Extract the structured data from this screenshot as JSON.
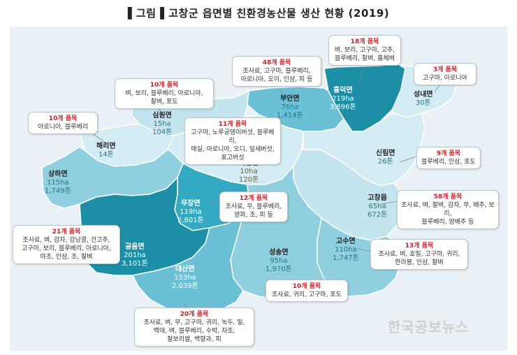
{
  "title": "▌그림▐  고창군 읍면별 친환경농산물 생산 현황 (2019)",
  "watermark": "한국공보뉴스",
  "colors": {
    "water": "#e9f0f6",
    "light": "#d4ecf4",
    "light2": "#c4e4ef",
    "mid": "#8fcfe0",
    "mid2": "#6cc0d6",
    "dark": "#34a9c2",
    "darkest": "#1c8ea6",
    "boundary": "#ffffff",
    "count_text": "#c0242a"
  },
  "regions": [
    {
      "name": "흥덕면",
      "area": "219ha",
      "output": "3,896톤"
    },
    {
      "name": "성내면",
      "area": "30톤",
      "output": ""
    },
    {
      "name": "부안면",
      "area": "76ha",
      "output": "1,414톤"
    },
    {
      "name": "심원면",
      "area": "15ha",
      "output": "104톤"
    },
    {
      "name": "해리면",
      "area": "14톤",
      "output": ""
    },
    {
      "name": "아산면",
      "area": "10ha",
      "output": "120톤"
    },
    {
      "name": "신림면",
      "area": "26톤",
      "output": ""
    },
    {
      "name": "상하면",
      "area": "115ha",
      "output": "1,749톤"
    },
    {
      "name": "무장면",
      "area": "119ha",
      "output": "2,801톤"
    },
    {
      "name": "고창읍",
      "area": "65ha",
      "output": "672톤"
    },
    {
      "name": "공음면",
      "area": "201ha",
      "output": "3,101톤"
    },
    {
      "name": "고수면",
      "area": "110ha",
      "output": "1,747톤"
    },
    {
      "name": "성송면",
      "area": "95ha",
      "output": "1,970톤"
    },
    {
      "name": "대산면",
      "area": "153ha",
      "output": "2,039톤"
    }
  ],
  "callouts": [
    {
      "count": "18개 품목",
      "items": "벼, 보리, 고구마, 고추,\n블루베리, 찰벼, 흉체벼"
    },
    {
      "count": "3개 품목",
      "items": "고구마, 아로니아"
    },
    {
      "count": "48개 품목",
      "items": "조사료, 고구마, 블루베리,\n아로니아, 오이, 인삼, 피 등"
    },
    {
      "count": "10개 품목",
      "items": "벼, 보리, 블루베리, 아로니아,\n찰벼, 포도"
    },
    {
      "count": "10개 품목",
      "items": "아로니아, 블루베리"
    },
    {
      "count": "11개 품목",
      "items": "고구마, 노루궁뎅이버섯, 블루베리,\n매실, 아로니아, 오디, 잎새버섯,\n표고버섯"
    },
    {
      "count": "9개 품목",
      "items": "블루베리, 인삼, 포도"
    },
    {
      "count": "12개 품목",
      "items": "조사료, 무, 블루베리,\n양파, 조, 피 등"
    },
    {
      "count": "58개 품목",
      "items": "조사료, 벼, 찰벼, 감자, 무, 배추, 보리,\n블루베리, 양배추 등"
    },
    {
      "count": "21개 품목",
      "items": "조사료, 벼, 감자, 강낭콩, 건고추,\n고구마, 보리, 블루베리, 아로니아,\n야초, 인삼, 조, 찰벼"
    },
    {
      "count": "13개 품목",
      "items": "조사료, 벼, 호밀, 고구마, 귀리,\n한라봉, 인삼, 찰벼"
    },
    {
      "count": "10개 품목",
      "items": "조사료, 귀리, 고구마, 포도"
    },
    {
      "count": "20개 품목",
      "items": "조사료, 벼, 무, 고구마, 귀리, 녹두, 밀,\n백태, 벼, 블루베리, 수박, 자조,\n찰보리쌀, 백향과, 피"
    }
  ]
}
